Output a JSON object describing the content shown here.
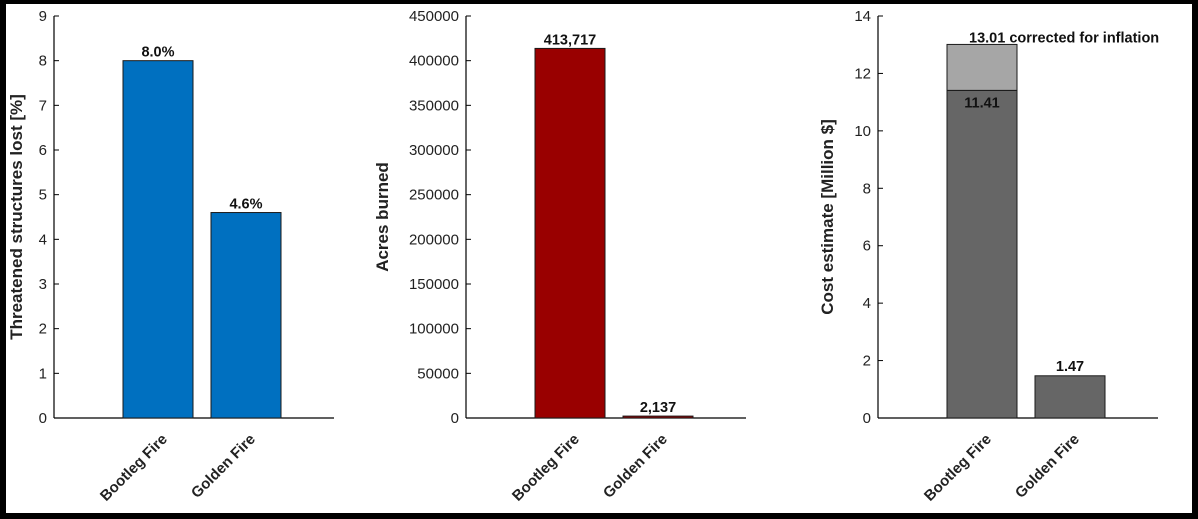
{
  "chart_data": [
    {
      "type": "bar",
      "categories": [
        "Bootleg Fire",
        "Golden Fire"
      ],
      "values": [
        8.0,
        4.6
      ],
      "data_labels": [
        "8.0%",
        "4.6%"
      ],
      "ylabel": "Threatened structures lost [%]",
      "ylim": [
        0,
        9
      ],
      "yticks": [
        0,
        1,
        2,
        3,
        4,
        5,
        6,
        7,
        8,
        9
      ],
      "color": "#0070C0",
      "grid": false
    },
    {
      "type": "bar",
      "categories": [
        "Bootleg Fire",
        "Golden Fire"
      ],
      "values": [
        413717,
        2137
      ],
      "data_labels": [
        "413,717",
        "2,137"
      ],
      "ylabel": "Acres burned",
      "ylim": [
        0,
        450000
      ],
      "yticks": [
        0,
        50000,
        100000,
        150000,
        200000,
        250000,
        300000,
        350000,
        400000,
        450000
      ],
      "color": "#990000",
      "grid": false
    },
    {
      "type": "bar",
      "stacked": true,
      "categories": [
        "Bootleg Fire",
        "Golden Fire"
      ],
      "series": [
        {
          "values": [
            11.41,
            1.47
          ],
          "color": "#666666",
          "data_labels": [
            "11.41",
            "1.47"
          ]
        },
        {
          "values": [
            1.6,
            0
          ],
          "color": "#A6A6A6",
          "data_labels": [
            "13.01 corrected for inflation",
            ""
          ]
        }
      ],
      "ylabel": "Cost estimate [Million $]",
      "ylim": [
        0,
        14
      ],
      "yticks": [
        0,
        2,
        4,
        6,
        8,
        10,
        12,
        14
      ],
      "grid": false
    }
  ]
}
